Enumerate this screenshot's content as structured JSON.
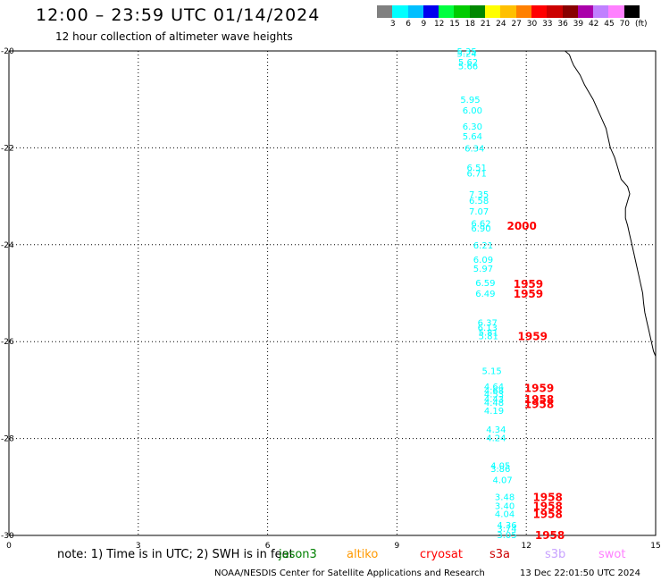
{
  "header": {
    "title": "12:00 – 23:59 UTC 01/14/2024",
    "subtitle": "12 hour collection of altimeter wave heights"
  },
  "legend": {
    "unit": "(ft)",
    "labels": [
      "3",
      "6",
      "9",
      "12",
      "15",
      "18",
      "21",
      "24",
      "27",
      "30",
      "33",
      "36",
      "39",
      "42",
      "45",
      "70"
    ],
    "colors": [
      "#808080",
      "#00ffff",
      "#00bfff",
      "#0000ee",
      "#00ff40",
      "#00cc00",
      "#008800",
      "#ffff00",
      "#ffc000",
      "#ff8000",
      "#ff0000",
      "#cc0000",
      "#880000",
      "#aa00aa",
      "#c080ff",
      "#ff80ff",
      "#000000"
    ]
  },
  "footer": {
    "note": "note:  1) Time is in UTC; 2) SWH is in feet",
    "satellites": [
      {
        "name": "jason3",
        "color": "#008000"
      },
      {
        "name": "altiko",
        "color": "#ff9900"
      },
      {
        "name": "cryosat",
        "color": "#ff0000"
      },
      {
        "name": "s3a",
        "color": "#cc0000"
      },
      {
        "name": "s3b",
        "color": "#c8a2ff"
      },
      {
        "name": "swot",
        "color": "#ff80ff"
      }
    ],
    "credit": "NOAA/NESDIS Center for Satellite Applications and Research",
    "timestamp": "13 Dec 22:01:50 UTC 2024"
  },
  "chart_data": {
    "type": "scatter",
    "x_ticks": [
      "0",
      "3",
      "6",
      "9",
      "12",
      "15"
    ],
    "y_ticks": [
      "-20",
      "-22",
      "-24",
      "-26",
      "-28",
      "-30"
    ],
    "xlim": [
      0,
      15
    ],
    "ylim": [
      -30,
      -20
    ],
    "grid": true,
    "swh_series": {
      "color": "#00ffff",
      "points": [
        {
          "x": 10.62,
          "y": -20.0,
          "label": "5.35"
        },
        {
          "x": 10.62,
          "y": -20.05,
          "label": "5.24"
        },
        {
          "x": 10.65,
          "y": -20.22,
          "label": "5.62"
        },
        {
          "x": 10.65,
          "y": -20.3,
          "label": "5.66"
        },
        {
          "x": 10.7,
          "y": -21.0,
          "label": "5.95"
        },
        {
          "x": 10.75,
          "y": -21.22,
          "label": "6.00"
        },
        {
          "x": 10.75,
          "y": -21.55,
          "label": "6.30"
        },
        {
          "x": 10.75,
          "y": -21.75,
          "label": "5.64"
        },
        {
          "x": 10.8,
          "y": -22.0,
          "label": "6.34"
        },
        {
          "x": 10.85,
          "y": -22.4,
          "label": "6.51"
        },
        {
          "x": 10.85,
          "y": -22.52,
          "label": "6.71"
        },
        {
          "x": 10.9,
          "y": -22.95,
          "label": "7.35"
        },
        {
          "x": 10.9,
          "y": -23.08,
          "label": "6.58"
        },
        {
          "x": 10.9,
          "y": -23.3,
          "label": "7.07"
        },
        {
          "x": 10.95,
          "y": -23.55,
          "label": "6.62"
        },
        {
          "x": 10.95,
          "y": -23.65,
          "label": "6.90"
        },
        {
          "x": 11.0,
          "y": -24.0,
          "label": "6.21"
        },
        {
          "x": 11.0,
          "y": -24.3,
          "label": "6.09"
        },
        {
          "x": 11.0,
          "y": -24.48,
          "label": "5.97"
        },
        {
          "x": 11.05,
          "y": -24.78,
          "label": "6.59"
        },
        {
          "x": 11.05,
          "y": -25.0,
          "label": "6.49"
        },
        {
          "x": 11.1,
          "y": -25.6,
          "label": "6.37"
        },
        {
          "x": 11.1,
          "y": -25.7,
          "label": "6.13"
        },
        {
          "x": 11.12,
          "y": -25.8,
          "label": "5.81"
        },
        {
          "x": 11.12,
          "y": -25.88,
          "label": "5.81"
        },
        {
          "x": 11.2,
          "y": -26.6,
          "label": "5.15"
        },
        {
          "x": 11.25,
          "y": -26.92,
          "label": "4.64"
        },
        {
          "x": 11.25,
          "y": -27.0,
          "label": "4.68"
        },
        {
          "x": 11.25,
          "y": -27.08,
          "label": "4.53"
        },
        {
          "x": 11.25,
          "y": -27.18,
          "label": "4.43"
        },
        {
          "x": 11.25,
          "y": -27.25,
          "label": "4.48"
        },
        {
          "x": 11.25,
          "y": -27.42,
          "label": "4.19"
        },
        {
          "x": 11.3,
          "y": -27.8,
          "label": "4.34"
        },
        {
          "x": 11.3,
          "y": -27.98,
          "label": "4.24"
        },
        {
          "x": 11.4,
          "y": -28.55,
          "label": "4.05"
        },
        {
          "x": 11.4,
          "y": -28.62,
          "label": "3.86"
        },
        {
          "x": 11.45,
          "y": -28.85,
          "label": "4.07"
        },
        {
          "x": 11.5,
          "y": -29.2,
          "label": "3.48"
        },
        {
          "x": 11.5,
          "y": -29.38,
          "label": "3.40"
        },
        {
          "x": 11.5,
          "y": -29.55,
          "label": "4.04"
        },
        {
          "x": 11.55,
          "y": -29.78,
          "label": "4.36"
        },
        {
          "x": 11.55,
          "y": -29.85,
          "label": "3.74"
        },
        {
          "x": 11.55,
          "y": -29.98,
          "label": "3.05"
        }
      ]
    },
    "pass_labels": {
      "color": "#ff0000",
      "points": [
        {
          "x": 11.55,
          "y": -23.6,
          "label": "2000"
        },
        {
          "x": 11.7,
          "y": -24.8,
          "label": "1959"
        },
        {
          "x": 11.7,
          "y": -25.0,
          "label": "1959"
        },
        {
          "x": 11.8,
          "y": -25.88,
          "label": "1959"
        },
        {
          "x": 11.95,
          "y": -26.95,
          "label": "1959"
        },
        {
          "x": 11.95,
          "y": -27.18,
          "label": "1958"
        },
        {
          "x": 11.95,
          "y": -27.28,
          "label": "1958"
        },
        {
          "x": 12.15,
          "y": -29.2,
          "label": "1958"
        },
        {
          "x": 12.15,
          "y": -29.38,
          "label": "1958"
        },
        {
          "x": 12.15,
          "y": -29.55,
          "label": "1958"
        },
        {
          "x": 12.2,
          "y": -29.98,
          "label": "1958"
        }
      ]
    },
    "coastline": [
      [
        12.9,
        -20.0
      ],
      [
        13.0,
        -20.08
      ],
      [
        13.05,
        -20.2
      ],
      [
        13.1,
        -20.3
      ],
      [
        13.25,
        -20.5
      ],
      [
        13.35,
        -20.7
      ],
      [
        13.45,
        -20.85
      ],
      [
        13.55,
        -21.0
      ],
      [
        13.65,
        -21.2
      ],
      [
        13.75,
        -21.4
      ],
      [
        13.85,
        -21.6
      ],
      [
        13.9,
        -21.8
      ],
      [
        13.95,
        -22.0
      ],
      [
        14.05,
        -22.2
      ],
      [
        14.1,
        -22.35
      ],
      [
        14.15,
        -22.5
      ],
      [
        14.2,
        -22.65
      ],
      [
        14.35,
        -22.8
      ],
      [
        14.4,
        -22.95
      ],
      [
        14.35,
        -23.1
      ],
      [
        14.3,
        -23.25
      ],
      [
        14.3,
        -23.45
      ],
      [
        14.35,
        -23.6
      ],
      [
        14.4,
        -23.8
      ],
      [
        14.45,
        -24.0
      ],
      [
        14.5,
        -24.2
      ],
      [
        14.55,
        -24.4
      ],
      [
        14.6,
        -24.6
      ],
      [
        14.65,
        -24.8
      ],
      [
        14.7,
        -25.0
      ],
      [
        14.72,
        -25.2
      ],
      [
        14.75,
        -25.4
      ],
      [
        14.8,
        -25.6
      ],
      [
        14.85,
        -25.8
      ],
      [
        14.9,
        -26.0
      ],
      [
        14.95,
        -26.2
      ],
      [
        15.0,
        -26.3
      ]
    ]
  }
}
